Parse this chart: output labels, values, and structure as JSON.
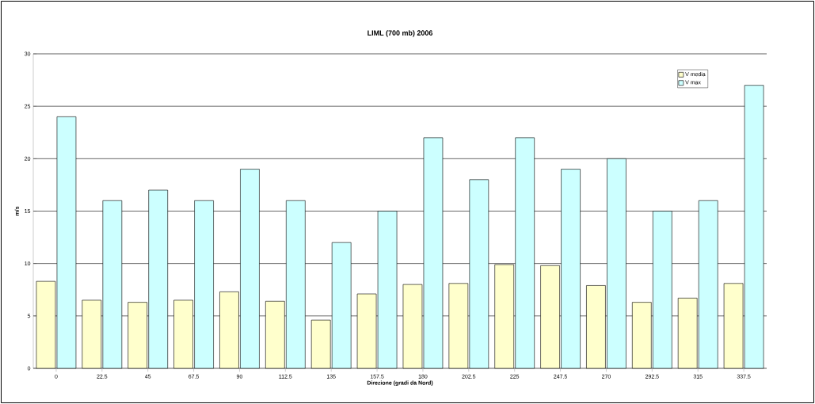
{
  "chart_data": {
    "type": "bar",
    "title": "LIML (700 mb) 2006",
    "xlabel": "Direzione (gradi da Nord)",
    "ylabel": "m/s",
    "categories": [
      "0",
      "22.5",
      "45",
      "67.5",
      "90",
      "112.5",
      "135",
      "157.5",
      "180",
      "202.5",
      "225",
      "247.5",
      "270",
      "292.5",
      "315",
      "337.5"
    ],
    "series": [
      {
        "name": "V media",
        "color": "#ffffcc",
        "values": [
          8.3,
          6.5,
          6.3,
          6.5,
          7.3,
          6.4,
          4.6,
          7.1,
          8.0,
          8.1,
          9.9,
          9.8,
          7.9,
          6.3,
          6.7,
          8.1
        ]
      },
      {
        "name": "V max",
        "color": "#ccffff",
        "values": [
          24,
          16,
          17,
          16,
          19,
          16,
          12,
          15,
          22,
          18,
          22,
          19,
          20,
          15,
          16,
          27
        ]
      }
    ],
    "ylim": [
      0,
      30
    ],
    "yticks": [
      0,
      5,
      10,
      15,
      20,
      25,
      30
    ],
    "grid": "y",
    "legend": "top right"
  }
}
